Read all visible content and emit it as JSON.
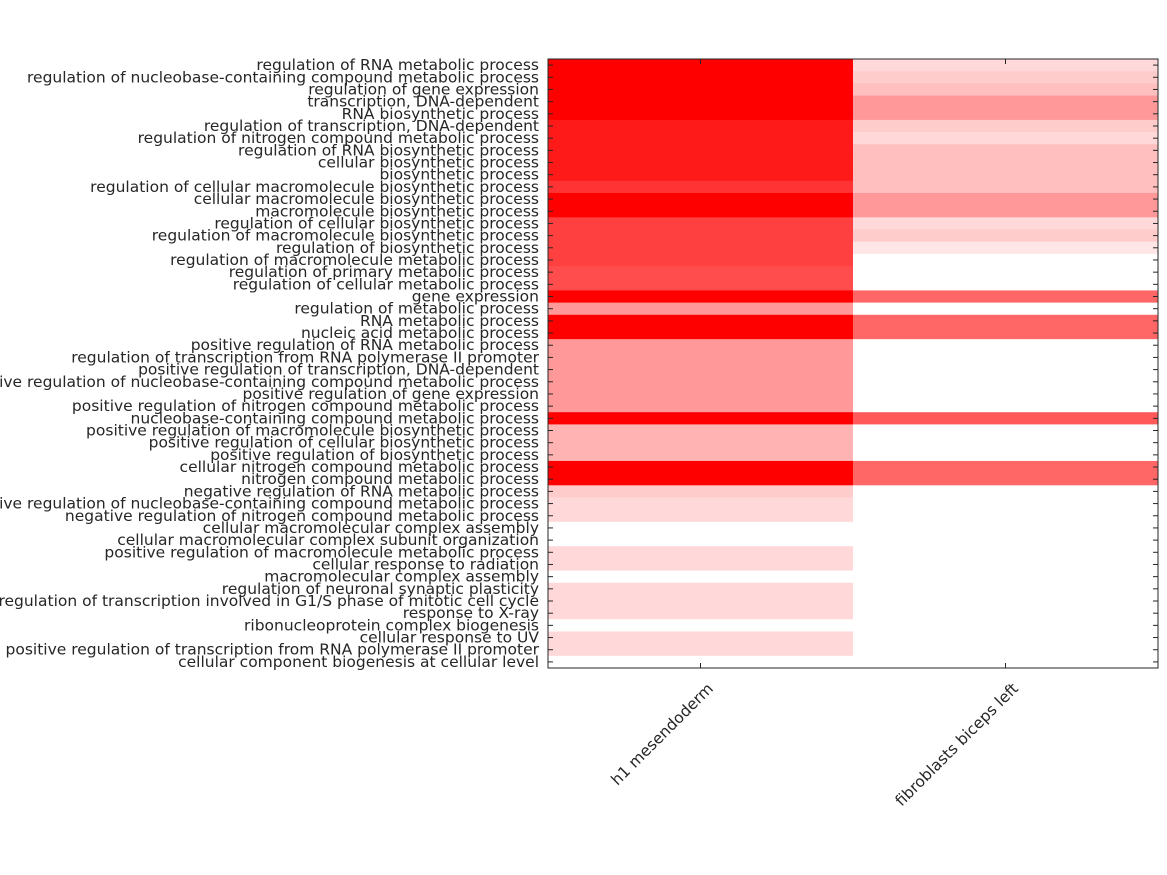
{
  "chart_data": {
    "type": "heatmap",
    "title": "",
    "xlabel": "",
    "ylabel": "",
    "columns": [
      "h1 mesendoderm",
      "fibroblasts biceps left"
    ],
    "color_low": "#ffffff",
    "color_high": "#ff0000",
    "value_range": [
      0,
      1
    ],
    "rows": [
      "regulation of RNA metabolic process",
      "regulation of nucleobase-containing compound metabolic process",
      "regulation of gene expression",
      "transcription, DNA-dependent",
      "RNA biosynthetic process",
      "regulation of transcription, DNA-dependent",
      "regulation of nitrogen compound metabolic process",
      "regulation of RNA biosynthetic process",
      "cellular biosynthetic process",
      "biosynthetic process",
      "regulation of cellular macromolecule biosynthetic process",
      "cellular macromolecule biosynthetic process",
      "macromolecule biosynthetic process",
      "regulation of cellular biosynthetic process",
      "regulation of macromolecule biosynthetic process",
      "regulation of biosynthetic process",
      "regulation of macromolecule metabolic process",
      "regulation of primary metabolic process",
      "regulation of cellular metabolic process",
      "gene expression",
      "regulation of metabolic process",
      "RNA metabolic process",
      "nucleic acid metabolic process",
      "positive regulation of RNA metabolic process",
      "regulation of transcription from RNA polymerase II promoter",
      "positive regulation of transcription, DNA-dependent",
      "positive regulation of nucleobase-containing compound metabolic process",
      "positive regulation of gene expression",
      "positive regulation of nitrogen compound metabolic process",
      "nucleobase-containing compound metabolic process",
      "positive regulation of macromolecule biosynthetic process",
      "positive regulation of cellular biosynthetic process",
      "positive regulation of biosynthetic process",
      "cellular nitrogen compound metabolic process",
      "nitrogen compound metabolic process",
      "negative regulation of RNA metabolic process",
      "negative regulation of nucleobase-containing compound metabolic process",
      "negative regulation of nitrogen compound metabolic process",
      "cellular macromolecular complex assembly",
      "cellular macromolecular complex subunit organization",
      "positive regulation of macromolecule metabolic process",
      "cellular response to radiation",
      "macromolecular complex assembly",
      "regulation of neuronal synaptic plasticity",
      "regulation of transcription involved in G1/S phase of mitotic cell cycle",
      "response to X-ray",
      "ribonucleoprotein complex biogenesis",
      "cellular response to UV",
      "positive regulation of transcription from RNA polymerase II promoter",
      "cellular component biogenesis at cellular level"
    ],
    "values": [
      [
        1.0,
        0.15
      ],
      [
        1.0,
        0.2
      ],
      [
        1.0,
        0.25
      ],
      [
        1.0,
        0.4
      ],
      [
        1.0,
        0.4
      ],
      [
        0.9,
        0.2
      ],
      [
        0.9,
        0.15
      ],
      [
        0.9,
        0.25
      ],
      [
        0.9,
        0.25
      ],
      [
        0.9,
        0.25
      ],
      [
        0.8,
        0.25
      ],
      [
        1.0,
        0.4
      ],
      [
        1.0,
        0.4
      ],
      [
        0.75,
        0.15
      ],
      [
        0.75,
        0.2
      ],
      [
        0.75,
        0.1
      ],
      [
        0.75,
        0.0
      ],
      [
        0.7,
        0.0
      ],
      [
        0.7,
        0.0
      ],
      [
        1.0,
        0.6
      ],
      [
        0.4,
        0.0
      ],
      [
        1.0,
        0.6
      ],
      [
        1.0,
        0.6
      ],
      [
        0.4,
        0.0
      ],
      [
        0.4,
        0.0
      ],
      [
        0.4,
        0.0
      ],
      [
        0.4,
        0.0
      ],
      [
        0.4,
        0.0
      ],
      [
        0.4,
        0.0
      ],
      [
        1.0,
        0.65
      ],
      [
        0.3,
        0.0
      ],
      [
        0.3,
        0.0
      ],
      [
        0.3,
        0.0
      ],
      [
        1.0,
        0.6
      ],
      [
        1.0,
        0.6
      ],
      [
        0.2,
        0.0
      ],
      [
        0.15,
        0.0
      ],
      [
        0.15,
        0.0
      ],
      [
        0.0,
        0.0
      ],
      [
        0.0,
        0.0
      ],
      [
        0.15,
        0.0
      ],
      [
        0.15,
        0.0
      ],
      [
        0.0,
        0.0
      ],
      [
        0.15,
        0.0
      ],
      [
        0.15,
        0.0
      ],
      [
        0.15,
        0.0
      ],
      [
        0.0,
        0.0
      ],
      [
        0.15,
        0.0
      ],
      [
        0.15,
        0.0
      ],
      [
        0.0,
        0.0
      ]
    ]
  }
}
